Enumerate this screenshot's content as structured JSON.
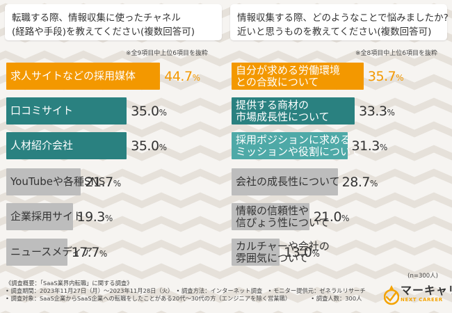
{
  "colors": {
    "orange": "#f39800",
    "teal": "#2a8180",
    "light_teal": "#4ea9a7",
    "gray": "#bdbdbd",
    "text_dark": "#333333",
    "gold": "#f4a300"
  },
  "chart_data": [
    {
      "type": "bar",
      "orientation": "horizontal",
      "title": "転職する際、情報収集に使ったチャネル（経路や手段）を教えてください（複数回答可）",
      "title_lines": [
        "転職する際、情報収集に使ったチャネル",
        "(経路や手段)を教えてください(複数回答可)"
      ],
      "note": "※全9項目中上位6項目を抜粋",
      "unit": "%",
      "categories": [
        "求人サイトなどの採用媒体",
        "口コミサイト",
        "人材紹介会社",
        "YouTubeや各種SNS",
        "企業採用サイト",
        "ニュースメディア"
      ],
      "values": [
        44.7,
        35.0,
        35.0,
        21.7,
        19.3,
        17.7
      ],
      "value_labels": [
        {
          "int": "44.",
          "dec": "7",
          "pct": "%"
        },
        {
          "int": "35.",
          "dec": "0",
          "pct": "%"
        },
        {
          "int": "35.",
          "dec": "0",
          "pct": "%"
        },
        {
          "int": "21.",
          "dec": "7",
          "pct": "%"
        },
        {
          "int": "19.",
          "dec": "3",
          "pct": "%"
        },
        {
          "int": "17.",
          "dec": "7",
          "pct": "%"
        }
      ],
      "bar_styles": [
        "orange",
        "teal",
        "teal",
        "gray",
        "gray",
        "gray"
      ]
    },
    {
      "type": "bar",
      "orientation": "horizontal",
      "title": "情報収集する際、どのようなことで悩みましたか？近いと思うものを教えてください（複数回答可）",
      "title_lines": [
        "情報収集する際、どのようなことで悩みましたか?",
        "近いと思うものを教えてください(複数回答可)"
      ],
      "note": "※全8項目中上位6項目を抜粋",
      "unit": "%",
      "categories": [
        [
          "自分が求める労働環境",
          "との合致について"
        ],
        [
          "提供する商材の",
          "市場成長性について"
        ],
        [
          "採用ポジションに求める",
          "ミッションや役割について"
        ],
        [
          "会社の成長性について"
        ],
        [
          "情報の信頼性や",
          "信ぴょう性について"
        ],
        [
          "カルチャーや会社の",
          "雰囲気について"
        ]
      ],
      "values": [
        35.7,
        33.3,
        31.3,
        28.7,
        21.0,
        13.0
      ],
      "value_labels": [
        {
          "int": "35.",
          "dec": "7",
          "pct": "%"
        },
        {
          "int": "33.",
          "dec": "3",
          "pct": "%"
        },
        {
          "int": "31.",
          "dec": "3",
          "pct": "%"
        },
        {
          "int": "28.",
          "dec": "7",
          "pct": "%"
        },
        {
          "int": "21.",
          "dec": "0",
          "pct": "%"
        },
        {
          "int": "13.",
          "dec": "0",
          "pct": "%"
        }
      ],
      "bar_styles": [
        "orange",
        "teal",
        "light_teal",
        "gray",
        "gray",
        "gray"
      ]
    }
  ],
  "footer": {
    "sample_size": "(n=300人)",
    "survey_lines": [
      "《調査概要：「SaaS業界内転職」に関する調査》",
      "• 調査期間：2023年11月27日（月）～2023年11月28日（火）　• 調査方法：インターネット調査　• モニター提供元：ゼネラルリサーチ",
      "• 調査対象：SaaS企業からSaaS企業への転職をしたことがある20代～30代の方（エンジニアを除く営業職）　　　　• 調査人数：300人"
    ]
  },
  "logo": {
    "name": "マーキャリ",
    "sub": "NEXT CAREER"
  }
}
